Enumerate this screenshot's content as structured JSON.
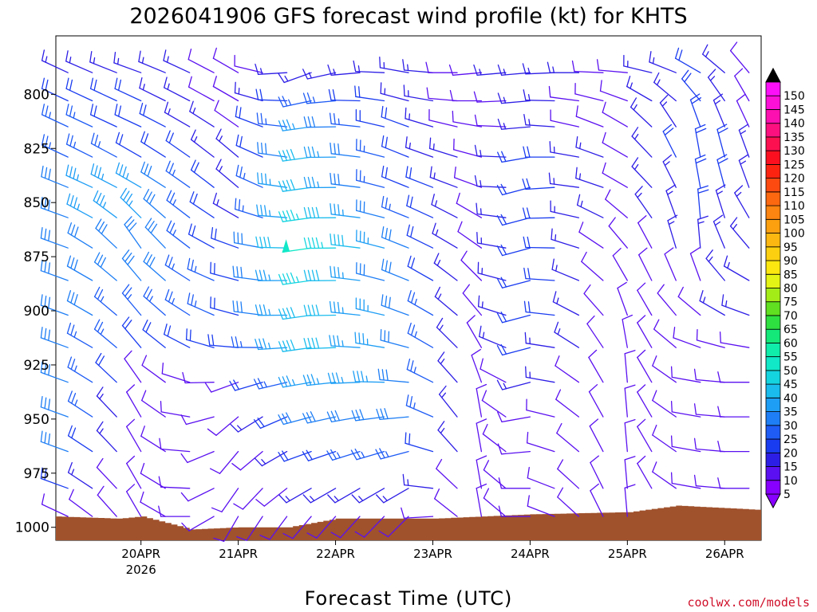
{
  "chart_data": {
    "type": "wind-barb-profile",
    "title": "2026041906 GFS forecast wind profile (kt) for KHTS",
    "xlabel": "Forecast Time (UTC)",
    "ylabel": "",
    "credit": "coolwx.com/models",
    "y_axis": {
      "unit": "hPa",
      "range": [
        1006,
        773
      ],
      "ticks": [
        800,
        825,
        850,
        875,
        900,
        925,
        950,
        975,
        1000
      ]
    },
    "x_axis": {
      "unit": "hours after 2026041906",
      "range": [
        -3,
        171
      ],
      "tick_hours": [
        18,
        42,
        66,
        90,
        114,
        138,
        162
      ],
      "tick_labels": [
        "20APR",
        "21APR",
        "22APR",
        "23APR",
        "24APR",
        "25APR",
        "26APR"
      ],
      "year_label": "2026"
    },
    "levels_hpa": [
      790,
      803,
      815,
      829,
      843,
      857,
      871,
      886,
      902,
      917,
      933,
      949,
      965,
      982,
      995
    ],
    "time_step_hours": 6,
    "keyframes": [
      {
        "hour": 0,
        "speeds": [
          15,
          22,
          25,
          25,
          32,
          32,
          32,
          32,
          32,
          30,
          30,
          30,
          28,
          20,
          10
        ],
        "dirs": [
          295,
          295,
          295,
          295,
          292,
          290,
          290,
          290,
          290,
          290,
          290,
          290,
          290,
          290,
          295
        ]
      },
      {
        "hour": 18,
        "speeds": [
          15,
          18,
          20,
          22,
          35,
          35,
          32,
          30,
          25,
          22,
          12,
          10,
          8,
          8,
          8
        ],
        "dirs": [
          290,
          295,
          295,
          300,
          300,
          315,
          325,
          320,
          320,
          320,
          325,
          330,
          330,
          330,
          330
        ]
      },
      {
        "hour": 42,
        "speeds": [
          10,
          10,
          12,
          14,
          14,
          15,
          18,
          20,
          22,
          18,
          12,
          8,
          8,
          8,
          8
        ],
        "dirs": [
          300,
          300,
          305,
          310,
          310,
          300,
          290,
          285,
          285,
          275,
          250,
          230,
          220,
          215,
          210
        ]
      },
      {
        "hour": 60,
        "speeds": [
          15,
          25,
          35,
          38,
          42,
          45,
          48,
          45,
          42,
          40,
          35,
          28,
          20,
          14,
          8
        ],
        "dirs": [
          250,
          258,
          262,
          262,
          262,
          262,
          262,
          262,
          262,
          262,
          260,
          255,
          250,
          240,
          220
        ]
      },
      {
        "hour": 84,
        "speeds": [
          15,
          15,
          18,
          20,
          22,
          24,
          28,
          28,
          30,
          32,
          32,
          30,
          25,
          15,
          8
        ],
        "dirs": [
          280,
          285,
          290,
          292,
          292,
          292,
          292,
          292,
          290,
          285,
          275,
          265,
          255,
          240,
          225
        ]
      },
      {
        "hour": 102,
        "speeds": [
          10,
          8,
          8,
          10,
          12,
          12,
          10,
          8,
          8,
          8,
          8,
          8,
          8,
          8,
          8
        ],
        "dirs": [
          265,
          270,
          280,
          285,
          290,
          300,
          305,
          315,
          320,
          330,
          340,
          350,
          350,
          350,
          350
        ]
      },
      {
        "hour": 114,
        "speeds": [
          15,
          15,
          15,
          20,
          20,
          20,
          22,
          22,
          22,
          18,
          15,
          12,
          10,
          8,
          8
        ],
        "dirs": [
          265,
          265,
          265,
          260,
          255,
          255,
          255,
          255,
          255,
          255,
          255,
          260,
          265,
          270,
          270
        ]
      },
      {
        "hour": 138,
        "speeds": [
          10,
          8,
          8,
          10,
          10,
          10,
          8,
          8,
          8,
          8,
          8,
          8,
          8,
          10,
          10
        ],
        "dirs": [
          275,
          290,
          300,
          300,
          300,
          310,
          320,
          330,
          340,
          350,
          355,
          355,
          355,
          355,
          355
        ]
      },
      {
        "hour": 156,
        "speeds": [
          18,
          22,
          22,
          22,
          20,
          18,
          15,
          12,
          10,
          10,
          10,
          10,
          10,
          10,
          10
        ],
        "dirs": [
          300,
          320,
          340,
          350,
          350,
          355,
          355,
          340,
          310,
          290,
          280,
          280,
          280,
          280,
          280
        ]
      },
      {
        "hour": 168,
        "speeds": [
          10,
          12,
          12,
          15,
          15,
          15,
          15,
          15,
          15,
          12,
          10,
          10,
          10,
          10,
          10
        ],
        "dirs": [
          320,
          330,
          335,
          340,
          340,
          330,
          320,
          300,
          290,
          280,
          270,
          270,
          270,
          270,
          270
        ]
      }
    ],
    "surface_pressure": [
      {
        "hour": -3,
        "hpa": 995
      },
      {
        "hour": 12,
        "hpa": 996
      },
      {
        "hour": 18,
        "hpa": 995
      },
      {
        "hour": 30,
        "hpa": 1001
      },
      {
        "hour": 42,
        "hpa": 1000
      },
      {
        "hour": 54,
        "hpa": 1000
      },
      {
        "hour": 66,
        "hpa": 996
      },
      {
        "hour": 90,
        "hpa": 996
      },
      {
        "hour": 114,
        "hpa": 994
      },
      {
        "hour": 138,
        "hpa": 993
      },
      {
        "hour": 150,
        "hpa": 990
      },
      {
        "hour": 171,
        "hpa": 992
      }
    ],
    "colorbar": {
      "label_values": [
        5,
        10,
        15,
        20,
        25,
        30,
        35,
        40,
        45,
        50,
        55,
        60,
        65,
        70,
        75,
        80,
        85,
        90,
        95,
        100,
        105,
        110,
        115,
        120,
        125,
        130,
        135,
        140,
        145,
        150
      ],
      "colors": [
        "#8800ff",
        "#5a10f0",
        "#2d1ee6",
        "#1a3cf0",
        "#1e5cf5",
        "#1e7ef5",
        "#1e9ef5",
        "#1abced",
        "#14d4e0",
        "#10e8c8",
        "#10ecaa",
        "#14e878",
        "#2ee040",
        "#60e020",
        "#a4ec18",
        "#e4f414",
        "#fce810",
        "#fcd010",
        "#fcb810",
        "#fca010",
        "#fc8410",
        "#fc6810",
        "#fc4a10",
        "#fc2410",
        "#fc1020",
        "#fc1050",
        "#fc1080",
        "#fc10b0",
        "#fc10d8",
        "#fc10f8"
      ]
    }
  }
}
